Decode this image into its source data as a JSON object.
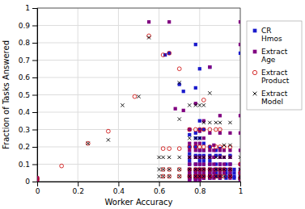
{
  "chart_data": {
    "type": "scatter",
    "xlabel": "Worker Accuracy",
    "ylabel": "Fraction of Tasks Answered",
    "xlim": [
      0,
      1.0
    ],
    "ylim": [
      0,
      1.0
    ],
    "xticks": [
      0,
      0.2,
      0.4,
      0.6,
      0.8,
      1
    ],
    "yticks": [
      0,
      0.1,
      0.2,
      0.3,
      0.4,
      0.5,
      0.6,
      0.7,
      0.8,
      0.9,
      1
    ],
    "grid": true,
    "legend": "right",
    "series": [
      {
        "name": "CR\nHmos",
        "color": "#1a1acc",
        "marker": "square",
        "x": [
          0.0,
          0.0,
          0.63,
          0.65,
          0.7,
          0.72,
          0.75,
          0.75,
          0.75,
          0.75,
          0.75,
          0.75,
          0.75,
          0.75,
          0.75,
          0.75,
          0.75,
          0.78,
          0.78,
          0.78,
          0.78,
          0.78,
          0.78,
          0.78,
          0.78,
          0.78,
          0.78,
          0.78,
          0.78,
          0.8,
          0.8,
          0.8,
          0.8,
          0.8,
          0.8,
          0.8,
          0.8,
          0.8,
          0.8,
          0.8,
          0.8,
          0.8,
          0.82,
          0.82,
          0.82,
          0.82,
          0.82,
          0.82,
          0.82,
          0.82,
          0.82,
          0.82,
          0.85,
          0.85,
          0.85,
          0.85,
          0.85,
          0.85,
          0.85,
          0.85,
          0.85,
          0.88,
          0.88,
          0.88,
          0.88,
          0.88,
          0.88,
          0.9,
          0.9,
          0.9,
          0.9,
          0.9,
          0.9,
          0.9,
          0.93,
          0.93,
          0.93,
          0.93,
          0.93,
          0.95,
          0.95,
          0.95,
          0.95,
          0.95,
          0.97,
          0.97,
          0.97,
          0.97,
          1.0,
          1.0,
          1.0,
          1.0,
          1.0,
          1.0
        ],
        "values": [
          0.02,
          0.0,
          0.73,
          0.74,
          0.56,
          0.52,
          0.3,
          0.27,
          0.2,
          0.16,
          0.12,
          0.1,
          0.07,
          0.05,
          0.03,
          0.02,
          0.01,
          0.79,
          0.54,
          0.28,
          0.25,
          0.2,
          0.15,
          0.1,
          0.06,
          0.05,
          0.03,
          0.02,
          0.01,
          0.65,
          0.35,
          0.3,
          0.25,
          0.18,
          0.15,
          0.12,
          0.1,
          0.07,
          0.05,
          0.03,
          0.02,
          0.01,
          0.3,
          0.22,
          0.18,
          0.15,
          0.12,
          0.1,
          0.07,
          0.05,
          0.03,
          0.02,
          0.66,
          0.2,
          0.15,
          0.12,
          0.1,
          0.07,
          0.05,
          0.03,
          0.02,
          0.18,
          0.15,
          0.1,
          0.07,
          0.05,
          0.03,
          0.19,
          0.15,
          0.1,
          0.07,
          0.05,
          0.03,
          0.02,
          0.1,
          0.07,
          0.05,
          0.03,
          0.02,
          0.15,
          0.1,
          0.07,
          0.05,
          0.03,
          0.07,
          0.05,
          0.03,
          0.02,
          0.74,
          0.07,
          0.05,
          0.03,
          0.02,
          0.01
        ]
      },
      {
        "name": "Extract\nAge",
        "color": "#800080",
        "marker": "square",
        "x": [
          0.0,
          0.0,
          0.55,
          0.65,
          0.68,
          0.72,
          0.75,
          0.75,
          0.75,
          0.75,
          0.75,
          0.75,
          0.75,
          0.75,
          0.75,
          0.75,
          0.78,
          0.78,
          0.78,
          0.78,
          0.78,
          0.78,
          0.78,
          0.78,
          0.78,
          0.78,
          0.8,
          0.8,
          0.8,
          0.8,
          0.8,
          0.8,
          0.8,
          0.8,
          0.8,
          0.8,
          0.82,
          0.82,
          0.82,
          0.82,
          0.82,
          0.82,
          0.82,
          0.82,
          0.82,
          0.85,
          0.85,
          0.85,
          0.85,
          0.85,
          0.85,
          0.85,
          0.85,
          0.85,
          0.87,
          0.87,
          0.87,
          0.87,
          0.87,
          0.87,
          0.87,
          0.87,
          0.9,
          0.9,
          0.9,
          0.9,
          0.9,
          0.9,
          0.9,
          0.9,
          0.9,
          0.92,
          0.92,
          0.92,
          0.92,
          0.92,
          0.95,
          0.95,
          0.95,
          0.95,
          0.95,
          0.95,
          0.95,
          0.95,
          1.0,
          1.0,
          1.0,
          1.0,
          1.0,
          1.0,
          1.0,
          1.0,
          1.0,
          1.0,
          1.0
        ],
        "values": [
          0.02,
          0.01,
          0.92,
          0.92,
          0.42,
          0.41,
          0.3,
          0.22,
          0.18,
          0.14,
          0.1,
          0.07,
          0.05,
          0.03,
          0.02,
          0.01,
          0.45,
          0.22,
          0.18,
          0.14,
          0.1,
          0.07,
          0.05,
          0.03,
          0.02,
          0.01,
          0.29,
          0.22,
          0.18,
          0.14,
          0.1,
          0.07,
          0.05,
          0.03,
          0.02,
          0.01,
          0.35,
          0.25,
          0.18,
          0.14,
          0.1,
          0.07,
          0.05,
          0.03,
          0.02,
          0.66,
          0.28,
          0.18,
          0.14,
          0.1,
          0.07,
          0.05,
          0.03,
          0.02,
          0.21,
          0.18,
          0.14,
          0.1,
          0.07,
          0.05,
          0.03,
          0.02,
          0.38,
          0.28,
          0.18,
          0.14,
          0.1,
          0.07,
          0.05,
          0.03,
          0.02,
          0.18,
          0.14,
          0.1,
          0.07,
          0.05,
          0.28,
          0.18,
          0.14,
          0.1,
          0.07,
          0.05,
          0.03,
          0.02,
          0.92,
          0.79,
          0.38,
          0.28,
          0.18,
          0.1,
          0.07,
          0.05,
          0.03,
          0.02,
          0.01
        ]
      },
      {
        "name": "Extract\nProduct",
        "color": "#cc0000",
        "marker": "open-circle",
        "x": [
          0.0,
          0.0,
          0.12,
          0.25,
          0.35,
          0.48,
          0.55,
          0.62,
          0.62,
          0.62,
          0.62,
          0.65,
          0.65,
          0.65,
          0.65,
          0.7,
          0.7,
          0.7,
          0.7,
          0.75,
          0.75,
          0.75,
          0.75,
          0.78,
          0.78,
          0.78,
          0.78,
          0.8,
          0.8,
          0.8,
          0.8,
          0.82,
          0.82,
          0.82,
          0.82,
          0.82,
          0.85,
          0.85,
          0.85,
          0.85,
          0.88,
          0.88,
          0.88,
          0.88,
          0.9,
          0.9,
          0.9,
          0.9,
          0.92,
          0.92,
          0.92,
          0.95,
          0.95,
          0.95,
          1.0,
          1.0,
          1.0
        ],
        "values": [
          0.02,
          0.01,
          0.09,
          0.22,
          0.29,
          0.49,
          0.84,
          0.73,
          0.19,
          0.07,
          0.03,
          0.74,
          0.19,
          0.07,
          0.03,
          0.65,
          0.19,
          0.07,
          0.03,
          0.3,
          0.2,
          0.07,
          0.03,
          0.3,
          0.2,
          0.07,
          0.03,
          0.3,
          0.2,
          0.07,
          0.03,
          0.47,
          0.3,
          0.2,
          0.07,
          0.03,
          0.3,
          0.2,
          0.07,
          0.03,
          0.3,
          0.2,
          0.07,
          0.03,
          0.3,
          0.2,
          0.07,
          0.03,
          0.2,
          0.07,
          0.03,
          0.2,
          0.07,
          0.03,
          0.1,
          0.05,
          0.02
        ]
      },
      {
        "name": "Extract\nModel",
        "color": "#000000",
        "marker": "x",
        "x": [
          0.25,
          0.35,
          0.42,
          0.5,
          0.55,
          0.6,
          0.6,
          0.6,
          0.62,
          0.62,
          0.62,
          0.65,
          0.65,
          0.65,
          0.7,
          0.7,
          0.7,
          0.7,
          0.7,
          0.75,
          0.75,
          0.75,
          0.75,
          0.75,
          0.78,
          0.78,
          0.78,
          0.78,
          0.78,
          0.8,
          0.8,
          0.8,
          0.8,
          0.8,
          0.82,
          0.82,
          0.82,
          0.82,
          0.82,
          0.85,
          0.85,
          0.85,
          0.85,
          0.85,
          0.88,
          0.88,
          0.88,
          0.88,
          0.9,
          0.9,
          0.9,
          0.9,
          0.92,
          0.92,
          0.92,
          0.92,
          0.95,
          0.95,
          0.95,
          0.95,
          0.95,
          1.0,
          1.0,
          1.0,
          1.0
        ],
        "values": [
          0.22,
          0.24,
          0.44,
          0.49,
          0.83,
          0.14,
          0.07,
          0.03,
          0.14,
          0.07,
          0.03,
          0.14,
          0.07,
          0.03,
          0.57,
          0.36,
          0.14,
          0.07,
          0.03,
          0.44,
          0.25,
          0.14,
          0.07,
          0.03,
          0.44,
          0.25,
          0.14,
          0.07,
          0.03,
          0.44,
          0.25,
          0.14,
          0.07,
          0.03,
          0.44,
          0.34,
          0.14,
          0.07,
          0.03,
          0.51,
          0.34,
          0.14,
          0.07,
          0.03,
          0.34,
          0.14,
          0.07,
          0.03,
          0.34,
          0.14,
          0.07,
          0.03,
          0.21,
          0.14,
          0.07,
          0.03,
          0.34,
          0.21,
          0.14,
          0.07,
          0.03,
          0.14,
          0.07,
          0.03,
          0.02
        ]
      }
    ]
  }
}
